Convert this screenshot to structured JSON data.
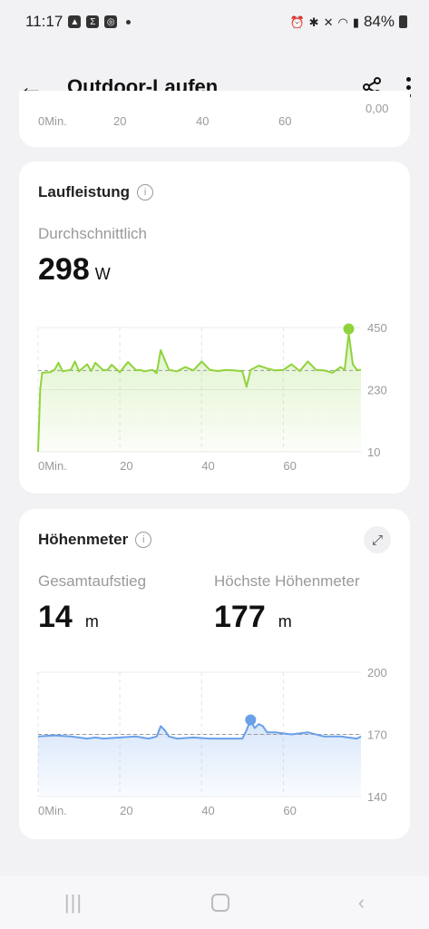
{
  "status": {
    "time": "11:17",
    "battery": "84%"
  },
  "appbar": {
    "title": "Outdoor-Laufen"
  },
  "top_card": {
    "x_ticks": [
      "0Min.",
      "20",
      "40",
      "60"
    ],
    "y_tick_partial": "0,00"
  },
  "power_card": {
    "title": "Laufleistung",
    "subtitle": "Durchschnittlich",
    "value": "298",
    "unit": "W"
  },
  "height_card": {
    "title": "Höhenmeter",
    "ascent_label": "Gesamtaufstieg",
    "ascent_value": "14",
    "ascent_unit": "m",
    "max_label": "Höchste Höhenmeter",
    "max_value": "177",
    "max_unit": "m"
  },
  "chart_data": [
    {
      "type": "line",
      "xlabel": "",
      "ylabel": "",
      "x_ticks": [
        "0Min.",
        "20",
        "40",
        "60"
      ],
      "y_ticks": [
        "450",
        "230",
        "10"
      ],
      "ylim": [
        10,
        450
      ],
      "xlim": [
        0,
        79
      ],
      "average": 298,
      "color": "#8fd33a",
      "x": [
        0,
        0.5,
        1,
        3,
        4,
        5,
        6,
        8,
        9,
        10,
        12,
        13,
        14,
        16,
        17,
        18,
        20,
        22,
        24,
        25,
        26,
        28,
        29,
        30,
        32,
        34,
        36,
        38,
        40,
        42,
        44,
        46,
        48,
        50,
        51,
        52,
        54,
        56,
        58,
        60,
        62,
        64,
        66,
        68,
        70,
        72,
        74,
        75,
        76,
        77,
        78,
        79
      ],
      "y": [
        10,
        230,
        290,
        292,
        300,
        325,
        295,
        300,
        330,
        295,
        320,
        296,
        325,
        298,
        300,
        318,
        292,
        328,
        298,
        300,
        295,
        300,
        288,
        370,
        300,
        295,
        310,
        298,
        330,
        300,
        296,
        300,
        298,
        295,
        240,
        300,
        315,
        305,
        298,
        300,
        320,
        296,
        330,
        300,
        298,
        290,
        310,
        300,
        430,
        320,
        300,
        300
      ],
      "peak": {
        "x": 76,
        "y": 445
      }
    },
    {
      "type": "area",
      "xlabel": "",
      "ylabel": "",
      "x_ticks": [
        "0Min.",
        "20",
        "40",
        "60"
      ],
      "y_ticks": [
        "200",
        "170",
        "140"
      ],
      "ylim": [
        140,
        200
      ],
      "xlim": [
        0,
        79
      ],
      "average": 170,
      "color": "#6aa0e8",
      "x": [
        0,
        4,
        8,
        12,
        14,
        16,
        20,
        24,
        27,
        29,
        30,
        31,
        32,
        34,
        38,
        42,
        46,
        50,
        51,
        52,
        53,
        54,
        55,
        56,
        58,
        62,
        66,
        70,
        74,
        78,
        79
      ],
      "y": [
        169,
        169.5,
        169,
        168,
        168.5,
        168,
        168.5,
        169,
        168,
        169,
        174,
        172,
        169,
        168,
        168.5,
        168,
        168,
        168,
        172,
        177,
        173,
        175,
        174,
        171,
        171,
        170,
        171,
        169,
        169,
        168,
        169
      ],
      "peak": {
        "x": 52,
        "y": 177
      }
    }
  ]
}
